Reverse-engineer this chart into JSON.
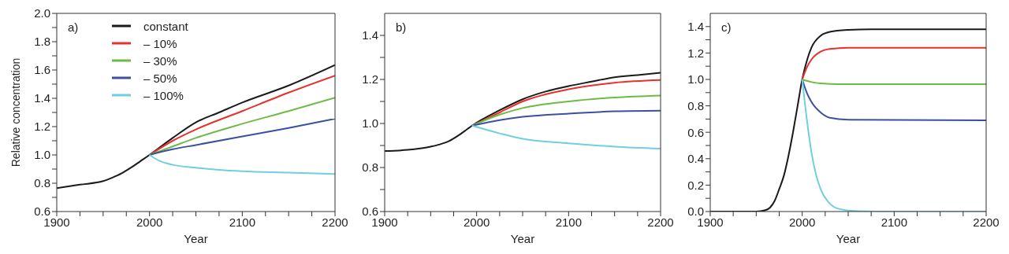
{
  "chart_data": [
    {
      "type": "line",
      "xlabel": "Year",
      "ylabel": "Relative concentration",
      "annotations": [
        "a)"
      ],
      "legend": "top left",
      "xlim": [
        1900,
        2200
      ],
      "xticks": [
        1900,
        {
          "value": 1925,
          "label": null
        },
        {
          "value": 1950,
          "label": null
        },
        {
          "value": 1975,
          "label": null
        },
        2000,
        {
          "value": 2025,
          "label": null
        },
        {
          "value": 2050,
          "label": null
        },
        {
          "value": 2075,
          "label": null
        },
        2100,
        {
          "value": 2125,
          "label": null
        },
        {
          "value": 2150,
          "label": null
        },
        {
          "value": 2175,
          "label": null
        },
        2200
      ],
      "ylim": [
        0.6,
        2.0
      ],
      "yticks": [
        {
          "value": 0.6,
          "label": "0.6"
        },
        {
          "value": 0.7,
          "label": null
        },
        {
          "value": 0.8,
          "label": "0.8"
        },
        {
          "value": 0.9,
          "label": null
        },
        {
          "value": 1.0,
          "label": "1.0"
        },
        {
          "value": 1.1,
          "label": null
        },
        {
          "value": 1.2,
          "label": "1.2"
        },
        {
          "value": 1.3,
          "label": null
        },
        {
          "value": 1.4,
          "label": "1.4"
        },
        {
          "value": 1.5,
          "label": null
        },
        {
          "value": 1.6,
          "label": "1.6"
        },
        {
          "value": 1.7,
          "label": null
        },
        {
          "value": 1.8,
          "label": "1.8"
        },
        {
          "value": 1.9,
          "label": null
        },
        {
          "value": 2.0,
          "label": "2.0"
        }
      ],
      "series": [
        {
          "name": "constant",
          "color": "#1a1a1a",
          "x": [
            1900,
            1925,
            1950,
            1960,
            1970,
            1980,
            1990,
            2000,
            2025,
            2050,
            2075,
            2100,
            2150,
            2200
          ],
          "values": [
            0.765,
            0.79,
            0.815,
            0.84,
            0.87,
            0.91,
            0.955,
            1.0,
            1.12,
            1.23,
            1.3,
            1.37,
            1.49,
            1.635
          ]
        },
        {
          "name": "– 10%",
          "color": "#e8302c",
          "x": [
            2000,
            2025,
            2050,
            2100,
            2150,
            2200
          ],
          "values": [
            1.0,
            1.1,
            1.18,
            1.31,
            1.44,
            1.56
          ]
        },
        {
          "name": "– 30%",
          "color": "#6dbb45",
          "x": [
            2000,
            2025,
            2050,
            2100,
            2150,
            2200
          ],
          "values": [
            1.0,
            1.06,
            1.12,
            1.22,
            1.31,
            1.405
          ]
        },
        {
          "name": "– 50%",
          "color": "#3a50a0",
          "x": [
            2000,
            2025,
            2050,
            2100,
            2150,
            2200
          ],
          "values": [
            1.0,
            1.04,
            1.07,
            1.13,
            1.19,
            1.255
          ]
        },
        {
          "name": "– 100%",
          "color": "#6fcfe0",
          "x": [
            2000,
            2010,
            2025,
            2050,
            2075,
            2100,
            2150,
            2200
          ],
          "values": [
            1.0,
            0.96,
            0.93,
            0.91,
            0.895,
            0.885,
            0.875,
            0.865
          ]
        }
      ]
    },
    {
      "type": "line",
      "xlabel": "Year",
      "annotations": [
        "b)"
      ],
      "xlim": [
        1900,
        2200
      ],
      "xticks": [
        1900,
        {
          "value": 1925,
          "label": null
        },
        {
          "value": 1950,
          "label": null
        },
        {
          "value": 1975,
          "label": null
        },
        2000,
        {
          "value": 2025,
          "label": null
        },
        {
          "value": 2050,
          "label": null
        },
        {
          "value": 2075,
          "label": null
        },
        2100,
        {
          "value": 2125,
          "label": null
        },
        {
          "value": 2150,
          "label": null
        },
        {
          "value": 2175,
          "label": null
        },
        2200
      ],
      "ylim": [
        0.6,
        1.5
      ],
      "yticks": [
        {
          "value": 0.6,
          "label": "0.6"
        },
        {
          "value": 0.7,
          "label": null
        },
        {
          "value": 0.8,
          "label": "0.8"
        },
        {
          "value": 0.9,
          "label": null
        },
        {
          "value": 1.0,
          "label": "1.0"
        },
        {
          "value": 1.1,
          "label": null
        },
        {
          "value": 1.2,
          "label": "1.2"
        },
        {
          "value": 1.3,
          "label": null
        },
        {
          "value": 1.4,
          "label": "1.4"
        }
      ],
      "series": [
        {
          "color": "#1a1a1a",
          "x": [
            1900,
            1925,
            1950,
            1960,
            1970,
            1980,
            1990,
            1995,
            2025,
            2050,
            2075,
            2100,
            2125,
            2150,
            2175,
            2200
          ],
          "values": [
            0.875,
            0.88,
            0.895,
            0.905,
            0.92,
            0.945,
            0.975,
            0.99,
            1.06,
            1.11,
            1.145,
            1.17,
            1.19,
            1.21,
            1.22,
            1.23
          ]
        },
        {
          "color": "#e8302c",
          "x": [
            1995,
            2025,
            2050,
            2100,
            2150,
            2200
          ],
          "values": [
            0.99,
            1.05,
            1.1,
            1.155,
            1.185,
            1.197
          ]
        },
        {
          "color": "#6dbb45",
          "x": [
            1995,
            2025,
            2050,
            2100,
            2150,
            2200
          ],
          "values": [
            0.99,
            1.04,
            1.07,
            1.1,
            1.118,
            1.127
          ]
        },
        {
          "color": "#3a50a0",
          "x": [
            1995,
            2025,
            2050,
            2100,
            2150,
            2200
          ],
          "values": [
            0.99,
            1.015,
            1.03,
            1.045,
            1.055,
            1.058
          ]
        },
        {
          "color": "#6fcfe0",
          "x": [
            1995,
            2025,
            2050,
            2100,
            2150,
            2200
          ],
          "values": [
            0.99,
            0.955,
            0.93,
            0.91,
            0.895,
            0.886
          ]
        }
      ]
    },
    {
      "type": "line",
      "xlabel": "Year",
      "annotations": [
        "c)"
      ],
      "xlim": [
        1900,
        2200
      ],
      "xticks": [
        1900,
        {
          "value": 1925,
          "label": null
        },
        {
          "value": 1950,
          "label": null
        },
        {
          "value": 1975,
          "label": null
        },
        2000,
        {
          "value": 2025,
          "label": null
        },
        {
          "value": 2050,
          "label": null
        },
        {
          "value": 2075,
          "label": null
        },
        2100,
        {
          "value": 2125,
          "label": null
        },
        {
          "value": 2150,
          "label": null
        },
        {
          "value": 2175,
          "label": null
        },
        2200
      ],
      "ylim": [
        0.0,
        1.5
      ],
      "yticks": [
        {
          "value": 0.0,
          "label": "0.0"
        },
        {
          "value": 0.1,
          "label": null
        },
        {
          "value": 0.2,
          "label": "0.2"
        },
        {
          "value": 0.3,
          "label": null
        },
        {
          "value": 0.4,
          "label": "0.4"
        },
        {
          "value": 0.5,
          "label": null
        },
        {
          "value": 0.6,
          "label": "0.6"
        },
        {
          "value": 0.7,
          "label": null
        },
        {
          "value": 0.8,
          "label": "0.8"
        },
        {
          "value": 0.9,
          "label": null
        },
        {
          "value": 1.0,
          "label": "1.0"
        },
        {
          "value": 1.1,
          "label": null
        },
        {
          "value": 1.2,
          "label": "1.2"
        },
        {
          "value": 1.3,
          "label": null
        },
        {
          "value": 1.4,
          "label": "1.4"
        }
      ],
      "series": [
        {
          "color": "#1a1a1a",
          "x": [
            1900,
            1950,
            1960,
            1965,
            1970,
            1975,
            1980,
            1985,
            1990,
            1995,
            2000,
            2005,
            2010,
            2020,
            2030,
            2050,
            2075,
            2200
          ],
          "values": [
            0,
            0,
            0.01,
            0.03,
            0.08,
            0.17,
            0.27,
            0.42,
            0.6,
            0.8,
            1.0,
            1.14,
            1.24,
            1.33,
            1.36,
            1.375,
            1.38,
            1.38
          ]
        },
        {
          "color": "#e8302c",
          "x": [
            2000,
            2005,
            2010,
            2020,
            2030,
            2050,
            2200
          ],
          "values": [
            1.0,
            1.09,
            1.15,
            1.21,
            1.23,
            1.24,
            1.24
          ]
        },
        {
          "color": "#6dbb45",
          "x": [
            2000,
            2010,
            2020,
            2040,
            2200
          ],
          "values": [
            1.0,
            0.98,
            0.97,
            0.965,
            0.965
          ]
        },
        {
          "color": "#3a50a0",
          "x": [
            2000,
            2005,
            2010,
            2020,
            2030,
            2050,
            2200
          ],
          "values": [
            1.0,
            0.9,
            0.83,
            0.75,
            0.71,
            0.695,
            0.69
          ]
        },
        {
          "color": "#6fcfe0",
          "x": [
            2000,
            2005,
            2010,
            2015,
            2020,
            2030,
            2040,
            2060,
            2100,
            2200
          ],
          "values": [
            1.0,
            0.7,
            0.45,
            0.28,
            0.17,
            0.06,
            0.02,
            0.003,
            0,
            0
          ]
        }
      ]
    }
  ]
}
